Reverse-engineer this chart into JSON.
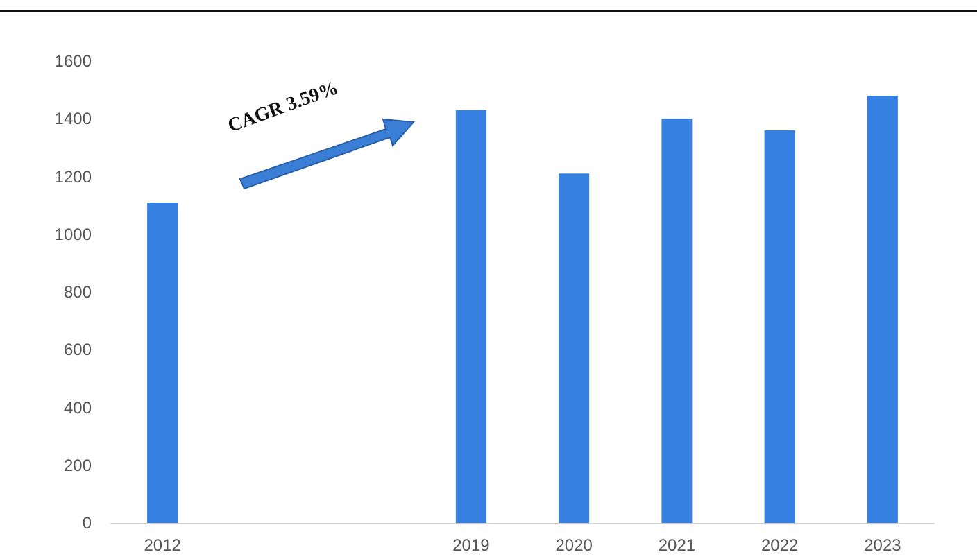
{
  "chart_data": {
    "type": "bar",
    "categories": [
      "2012",
      null,
      null,
      "2019",
      "2020",
      "2021",
      "2022",
      "2023"
    ],
    "values": [
      1110,
      null,
      null,
      1430,
      1210,
      1400,
      1360,
      1480
    ],
    "color": "#3580e0",
    "ylim": [
      0,
      1600
    ],
    "yticks": [
      0,
      200,
      400,
      600,
      800,
      1000,
      1200,
      1400,
      1600
    ],
    "grid": false,
    "annotations": [
      "CAGR 3.59%"
    ]
  }
}
